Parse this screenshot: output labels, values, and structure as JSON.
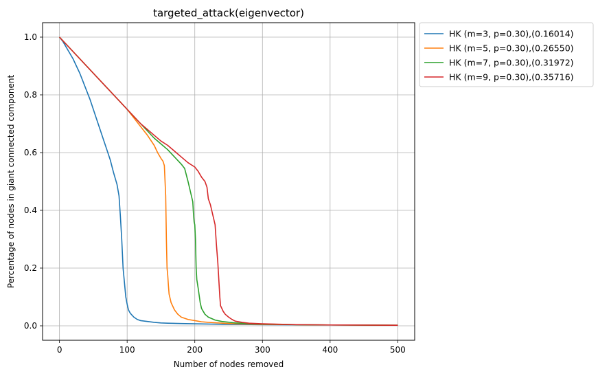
{
  "chart_data": {
    "type": "line",
    "title": "targeted_attack(eigenvector)",
    "xlabel": "Number of nodes removed",
    "ylabel": "Percentage of nodes in giant connected component",
    "xlim": [
      -25,
      525
    ],
    "ylim": [
      -0.05,
      1.05
    ],
    "xticks": [
      0,
      100,
      200,
      300,
      400,
      500
    ],
    "xtick_labels": [
      "0",
      "100",
      "200",
      "300",
      "400",
      "500"
    ],
    "yticks": [
      0.0,
      0.2,
      0.4,
      0.6,
      0.8,
      1.0
    ],
    "ytick_labels": [
      "0.0",
      "0.2",
      "0.4",
      "0.6",
      "0.8",
      "1.0"
    ],
    "grid": true,
    "legend_position": "outside-top-right",
    "series": [
      {
        "name": "HK (m=3, p=0.30),(0.16014)",
        "color": "#1f77b4",
        "x": [
          0,
          5,
          10,
          15,
          20,
          25,
          30,
          35,
          40,
          45,
          50,
          55,
          60,
          65,
          70,
          75,
          80,
          85,
          88,
          90,
          92,
          94,
          96,
          98,
          100,
          102,
          104,
          106,
          110,
          115,
          120,
          130,
          140,
          150,
          160,
          180,
          200,
          250,
          300,
          400,
          500
        ],
        "y": [
          1.0,
          0.985,
          0.965,
          0.945,
          0.925,
          0.9,
          0.875,
          0.845,
          0.815,
          0.785,
          0.75,
          0.715,
          0.68,
          0.645,
          0.61,
          0.575,
          0.53,
          0.49,
          0.45,
          0.38,
          0.3,
          0.2,
          0.15,
          0.1,
          0.075,
          0.055,
          0.046,
          0.04,
          0.03,
          0.022,
          0.018,
          0.015,
          0.012,
          0.01,
          0.009,
          0.008,
          0.007,
          0.005,
          0.004,
          0.003,
          0.002
        ]
      },
      {
        "name": "HK (m=5, p=0.30),(0.26550)",
        "color": "#ff7f0e",
        "x": [
          0,
          10,
          20,
          30,
          40,
          50,
          60,
          70,
          80,
          90,
          100,
          110,
          120,
          130,
          140,
          145,
          150,
          153,
          155,
          157,
          158,
          159,
          160,
          161,
          162,
          165,
          170,
          175,
          180,
          190,
          200,
          210,
          220,
          250,
          300,
          400,
          500
        ],
        "y": [
          1.0,
          0.975,
          0.95,
          0.925,
          0.9,
          0.875,
          0.85,
          0.825,
          0.8,
          0.775,
          0.75,
          0.72,
          0.69,
          0.66,
          0.625,
          0.6,
          0.58,
          0.57,
          0.555,
          0.45,
          0.3,
          0.2,
          0.175,
          0.14,
          0.11,
          0.08,
          0.055,
          0.04,
          0.03,
          0.022,
          0.018,
          0.014,
          0.012,
          0.008,
          0.005,
          0.003,
          0.002
        ]
      },
      {
        "name": "HK (m=7, p=0.30),(0.31972)",
        "color": "#2ca02c",
        "x": [
          0,
          10,
          20,
          30,
          40,
          50,
          60,
          70,
          80,
          90,
          100,
          110,
          120,
          130,
          140,
          150,
          160,
          170,
          180,
          185,
          190,
          193,
          195,
          197,
          198,
          199,
          200,
          201,
          202,
          203,
          205,
          208,
          210,
          215,
          220,
          230,
          240,
          260,
          280,
          300,
          350,
          400,
          500
        ],
        "y": [
          1.0,
          0.975,
          0.95,
          0.925,
          0.9,
          0.875,
          0.85,
          0.825,
          0.8,
          0.775,
          0.75,
          0.725,
          0.7,
          0.675,
          0.65,
          0.63,
          0.61,
          0.585,
          0.56,
          0.545,
          0.5,
          0.47,
          0.45,
          0.43,
          0.39,
          0.36,
          0.35,
          0.3,
          0.2,
          0.16,
          0.13,
          0.08,
          0.06,
          0.04,
          0.03,
          0.02,
          0.015,
          0.01,
          0.008,
          0.006,
          0.004,
          0.003,
          0.002
        ]
      },
      {
        "name": "HK (m=9, p=0.30),(0.35716)",
        "color": "#d62728",
        "x": [
          0,
          10,
          20,
          30,
          40,
          50,
          60,
          70,
          80,
          90,
          100,
          110,
          120,
          130,
          140,
          150,
          160,
          170,
          180,
          190,
          200,
          205,
          210,
          215,
          218,
          220,
          223,
          225,
          228,
          230,
          232,
          234,
          235,
          236,
          237,
          238,
          240,
          242,
          245,
          250,
          255,
          260,
          270,
          280,
          300,
          350,
          400,
          500
        ],
        "y": [
          1.0,
          0.975,
          0.95,
          0.925,
          0.9,
          0.875,
          0.85,
          0.825,
          0.8,
          0.775,
          0.75,
          0.725,
          0.7,
          0.68,
          0.66,
          0.64,
          0.625,
          0.605,
          0.585,
          0.565,
          0.55,
          0.535,
          0.515,
          0.5,
          0.48,
          0.44,
          0.42,
          0.4,
          0.37,
          0.35,
          0.28,
          0.22,
          0.18,
          0.14,
          0.1,
          0.07,
          0.06,
          0.05,
          0.04,
          0.03,
          0.022,
          0.016,
          0.012,
          0.009,
          0.007,
          0.004,
          0.003,
          0.002
        ]
      }
    ]
  }
}
